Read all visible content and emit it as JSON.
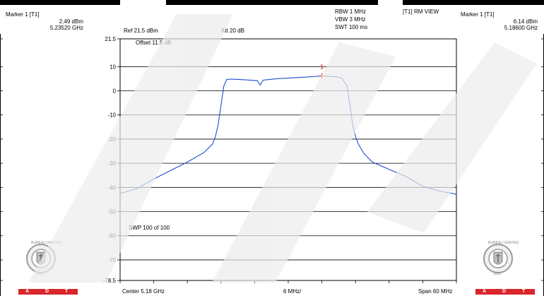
{
  "left_panel": {
    "marker_title": "Marker 1 [T1]",
    "marker_level": "2.49 dBm",
    "marker_freq": "5.23520 GHz"
  },
  "right_panel": {
    "marker_title": "Marker 1 [T1]",
    "marker_level": "6.14 dBm",
    "marker_freq": "5.18600 GHz"
  },
  "header": {
    "ref": "Ref 21.5 dBm",
    "att": "Att  20 dB",
    "rbw": "RBW 1 MHz",
    "vbw": "VBW 3 MHz",
    "swt": "SWT 100 ms",
    "trace_mode": "[T1] RM VIEW",
    "offset": "Offset 11.5 dB"
  },
  "footer": {
    "center": "Center 5.18 GHz",
    "div": "6 MHz/",
    "span": "Span 60 MHz",
    "sweep": "SWP 100 of 100"
  },
  "logo": {
    "ring_text": "BUREAU VERITAS",
    "year": "1828",
    "band_letters": [
      "A",
      "D",
      "T"
    ]
  },
  "marker_label": "1",
  "colors": {
    "trace": "#1f4fd1",
    "marker": "#d92020",
    "grid": "#000000",
    "watermark": "#e6e6e6",
    "adt_band": "#d9262b"
  },
  "chart_data": {
    "type": "line",
    "title": "",
    "xlabel": "",
    "ylabel": "",
    "x_unit": "GHz",
    "y_unit": "dBm",
    "xlim": [
      5.15,
      5.21
    ],
    "ylim": [
      -78.5,
      21.5
    ],
    "y_ticks": [
      21.5,
      10,
      0,
      -10,
      -20,
      -30,
      -40,
      -50,
      -60,
      -70,
      -78.5
    ],
    "grid": true,
    "series": [
      {
        "name": "",
        "x": [
          5.15,
          5.153,
          5.156,
          5.159,
          5.162,
          5.165,
          5.1665,
          5.167,
          5.1675,
          5.168,
          5.1685,
          5.169,
          5.1695,
          5.17,
          5.172,
          5.1745,
          5.175,
          5.1755,
          5.178,
          5.181,
          5.184,
          5.186,
          5.1885,
          5.1895,
          5.1905,
          5.191,
          5.1915,
          5.192,
          5.1925,
          5.1935,
          5.195,
          5.198,
          5.201,
          5.204,
          5.207,
          5.21
        ],
        "y": [
          -42.5,
          -40.5,
          -36.5,
          -33,
          -29.5,
          -25.5,
          -22,
          -19,
          -14,
          -6,
          2,
          4.6,
          4.8,
          4.8,
          4.6,
          4.2,
          2.4,
          4.4,
          5,
          5.4,
          5.8,
          6.14,
          5.8,
          5.4,
          2,
          -6,
          -14,
          -19,
          -22,
          -26,
          -29.5,
          -32.5,
          -35.5,
          -39.5,
          -41.5,
          -42.8
        ]
      }
    ],
    "markers": [
      {
        "label": "1",
        "x": 5.186,
        "y": 6.14
      }
    ]
  }
}
